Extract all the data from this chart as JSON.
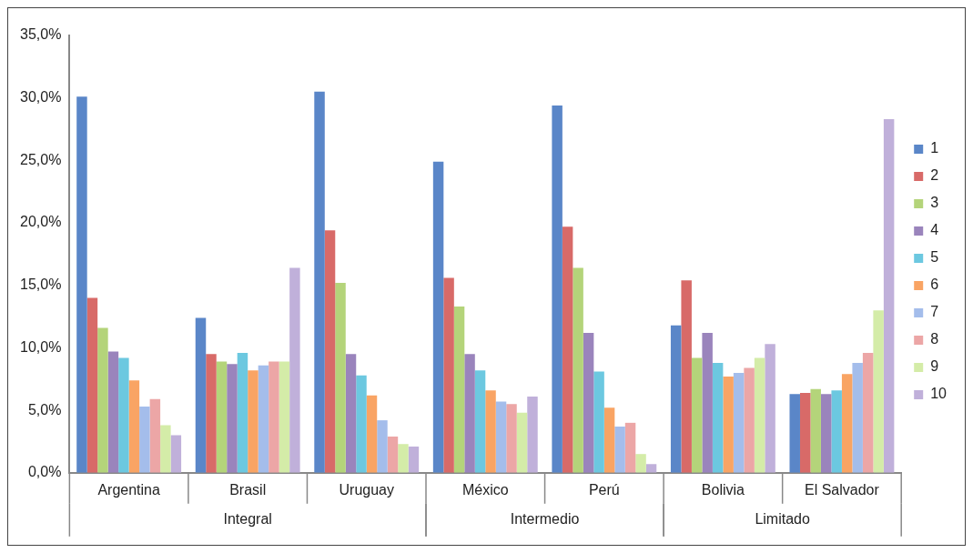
{
  "chart_data": {
    "type": "bar",
    "categories": [
      "Argentina",
      "Brasil",
      "Uruguay",
      "México",
      "Perú",
      "Bolivia",
      "El Salvador"
    ],
    "series": [
      {
        "name": "1",
        "color": "#5a86c8",
        "values": [
          30.1,
          12.4,
          30.5,
          24.9,
          29.4,
          11.8,
          6.3
        ]
      },
      {
        "name": "2",
        "color": "#d86a68",
        "values": [
          14.0,
          9.5,
          19.4,
          15.6,
          19.7,
          15.4,
          6.4
        ]
      },
      {
        "name": "3",
        "color": "#b4d47a",
        "values": [
          11.6,
          8.9,
          15.2,
          13.3,
          16.4,
          9.2,
          6.7
        ]
      },
      {
        "name": "4",
        "color": "#9a84bc",
        "values": [
          9.7,
          8.7,
          9.5,
          9.5,
          11.2,
          11.2,
          6.3
        ]
      },
      {
        "name": "5",
        "color": "#6cc8e0",
        "values": [
          9.2,
          9.6,
          7.8,
          8.2,
          8.1,
          8.8,
          6.6
        ]
      },
      {
        "name": "6",
        "color": "#f9a464",
        "values": [
          7.4,
          8.2,
          6.2,
          6.6,
          5.2,
          7.7,
          7.9
        ]
      },
      {
        "name": "7",
        "color": "#a4bdeb",
        "values": [
          5.3,
          8.6,
          4.2,
          5.7,
          3.7,
          8.0,
          8.8
        ]
      },
      {
        "name": "8",
        "color": "#eca6a6",
        "values": [
          5.9,
          8.9,
          2.9,
          5.5,
          4.0,
          8.4,
          9.6
        ]
      },
      {
        "name": "9",
        "color": "#d4eca8",
        "values": [
          3.8,
          8.9,
          2.3,
          4.8,
          1.5,
          9.2,
          13.0
        ]
      },
      {
        "name": "10",
        "color": "#c0b0da",
        "values": [
          3.0,
          16.4,
          2.1,
          6.1,
          0.7,
          10.3,
          28.3
        ]
      }
    ],
    "ylim": [
      0,
      35
    ],
    "yticks": [
      {
        "value": 0,
        "label": "0,0%"
      },
      {
        "value": 5,
        "label": "5,0%"
      },
      {
        "value": 10,
        "label": "10,0%"
      },
      {
        "value": 15,
        "label": "15,0%"
      },
      {
        "value": 20,
        "label": "20,0%"
      },
      {
        "value": 25,
        "label": "25,0%"
      },
      {
        "value": 30,
        "label": "30,0%"
      },
      {
        "value": 35,
        "label": "35,0%"
      }
    ],
    "grid": false,
    "legend": "right",
    "annotations": [
      "Integral",
      "Intermedio",
      "Limitado"
    ]
  }
}
